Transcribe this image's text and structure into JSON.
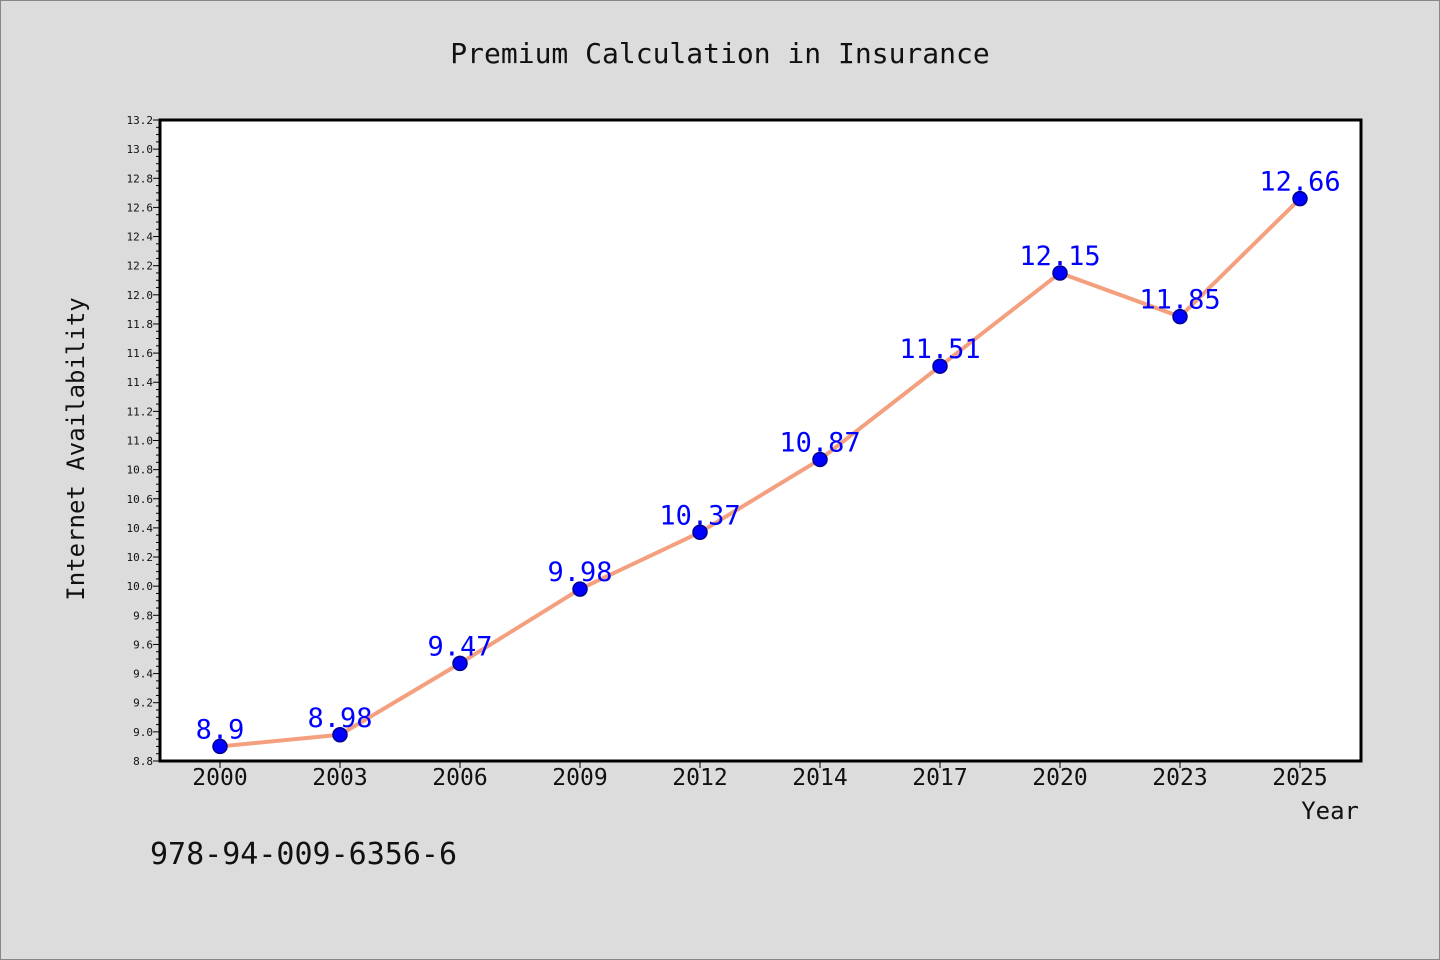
{
  "chart_data": {
    "type": "line",
    "title": "Premium Calculation in Insurance",
    "xlabel": "Year",
    "ylabel": "Internet Availability",
    "categories": [
      "2000",
      "2003",
      "2006",
      "2009",
      "2012",
      "2014",
      "2017",
      "2020",
      "2023",
      "2025"
    ],
    "series": [
      {
        "values": [
          8.9,
          8.98,
          9.47,
          9.98,
          10.37,
          10.87,
          11.51,
          12.15,
          11.85,
          12.66
        ],
        "labels": [
          "8.9",
          "8.98",
          "9.47",
          "9.98",
          "10.37",
          "10.87",
          "11.51",
          "12.15",
          "11.85",
          "12.66"
        ]
      }
    ],
    "ylim": [
      8.8,
      13.2
    ],
    "yticks": [
      "8.8",
      "9.0",
      "9.2",
      "9.4",
      "9.6",
      "9.8",
      "10.0",
      "10.2",
      "10.4",
      "10.6",
      "10.8",
      "11.0",
      "11.2",
      "11.4",
      "11.6",
      "11.8",
      "12.0",
      "12.2",
      "12.4",
      "12.6",
      "12.8",
      "13.0",
      "13.2"
    ],
    "grid": false,
    "legend": "none",
    "colors": {
      "line": "#f4a07f",
      "marker": "#0000ff",
      "marker_edge": "#00008b",
      "data_label": "#0000ff",
      "plot_background": "#ffffff",
      "figure_background": "#dcdcdc"
    }
  },
  "footer": {
    "isbn": "978-94-009-6356-6"
  }
}
